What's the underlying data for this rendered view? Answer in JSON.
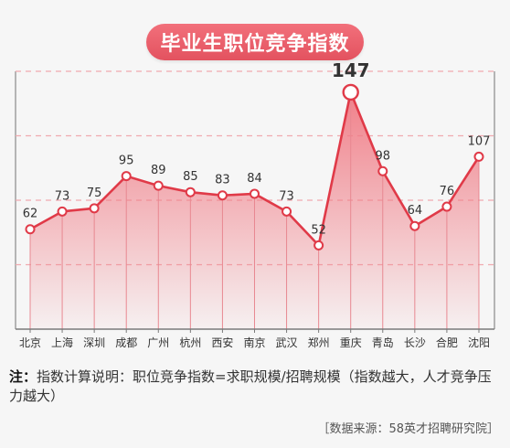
{
  "chart_data": {
    "type": "line",
    "title": "毕业生职位竞争指数",
    "categories": [
      "北京",
      "上海",
      "深圳",
      "成都",
      "广州",
      "杭州",
      "西安",
      "南京",
      "武汉",
      "郑州",
      "重庆",
      "青岛",
      "长沙",
      "合肥",
      "沈阳"
    ],
    "values": [
      62,
      73,
      75,
      95,
      89,
      85,
      83,
      84,
      73,
      52,
      147,
      98,
      64,
      76,
      107
    ],
    "ylim": [
      0,
      160
    ],
    "highlight_category": "重庆",
    "line_color": "#e03a48",
    "fill_color": "#f07a84",
    "grid": "horizontal dashed"
  },
  "footer": {
    "note_prefix": "注：",
    "note_text": "指数计算说明：职位竞争指数=求职规模/招聘规模（指数越大，人才竞争压力越大）",
    "source": "［数据来源：58英才招聘研究院］"
  }
}
